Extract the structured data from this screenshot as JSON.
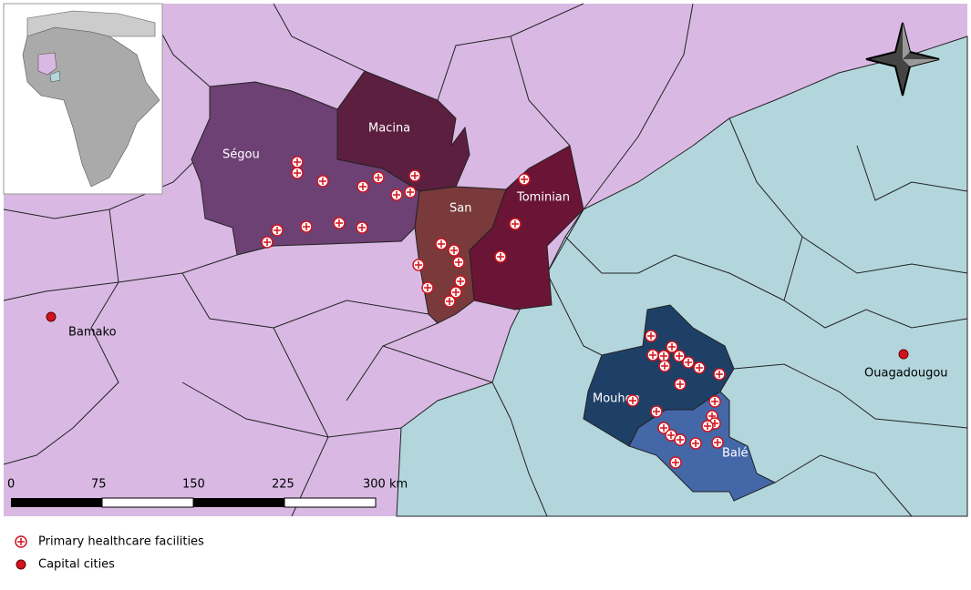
{
  "regions": [
    {
      "label": "Ségou"
    },
    {
      "label": "Macina"
    },
    {
      "label": "San"
    },
    {
      "label": "Tominian"
    },
    {
      "label": "Mouhon"
    },
    {
      "label": "Balé"
    }
  ],
  "cities": [
    {
      "label": "Bamako"
    },
    {
      "label": "Ouagadougou"
    }
  ],
  "scale_bar": {
    "labels": [
      "0",
      "75",
      "150",
      "225",
      "300 km"
    ]
  },
  "legend": {
    "items": [
      {
        "label": "Primary healthcare facilities"
      },
      {
        "label": "Capital cities"
      }
    ]
  }
}
